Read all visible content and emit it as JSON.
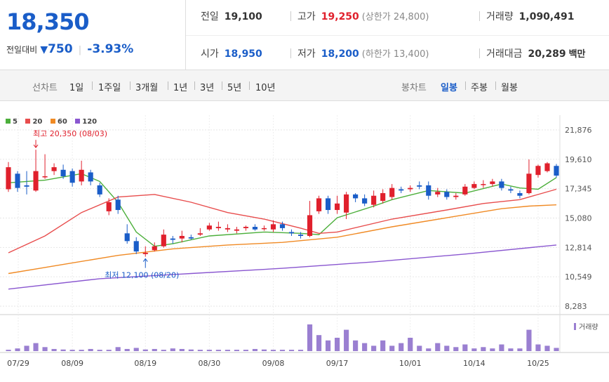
{
  "price": {
    "current": "18,350",
    "change_label": "전일대비",
    "change_arrow": "▼",
    "change_value": "750",
    "change_rate": "-3.93%",
    "color_down": "#1a5dc8",
    "color_up": "#e0202c"
  },
  "stats": {
    "prev_close": {
      "label": "전일",
      "value": "19,100"
    },
    "high": {
      "label": "고가",
      "value": "19,250",
      "sub": "(상한가 24,800)"
    },
    "volume": {
      "label": "거래량",
      "value": "1,090,491"
    },
    "open": {
      "label": "시가",
      "value": "18,950"
    },
    "low": {
      "label": "저가",
      "value": "18,200",
      "sub": "(하한가 13,400)"
    },
    "amount": {
      "label": "거래대금",
      "value": "20,289",
      "unit": "백만"
    }
  },
  "toolbar": {
    "line_chart_label": "선차트",
    "periods": [
      "1일",
      "1주일",
      "3개월",
      "1년",
      "3년",
      "5년",
      "10년"
    ],
    "candle_chart_label": "봉차트",
    "candle_periods": [
      "일봉",
      "주봉",
      "월봉"
    ],
    "candle_selected": "일봉"
  },
  "legend": [
    {
      "label": "5",
      "color": "#4caf3b"
    },
    {
      "label": "20",
      "color": "#e84d4d"
    },
    {
      "label": "60",
      "color": "#f08a24"
    },
    {
      "label": "120",
      "color": "#8a57d0"
    }
  ],
  "annotations": {
    "high": "최고 20,350 (08/03)",
    "low": "최저 12,100 (08/20)"
  },
  "volume_label": "거래량",
  "chart_data": {
    "type": "candlestick",
    "y_ticks": [
      21876,
      19610,
      17345,
      15080,
      12814,
      10549,
      8283
    ],
    "ylim": [
      8283,
      21876
    ],
    "x_tick_labels": [
      "07/29",
      "08/09",
      "08/19",
      "08/30",
      "09/08",
      "09/17",
      "10/01",
      "10/14",
      "10/25"
    ],
    "candles": [
      {
        "o": 17300,
        "c": 19000,
        "h": 19400,
        "l": 17100
      },
      {
        "o": 18500,
        "c": 17400,
        "h": 18700,
        "l": 17100
      },
      {
        "o": 17600,
        "c": 17500,
        "h": 18700,
        "l": 16900
      },
      {
        "o": 17200,
        "c": 18700,
        "h": 20350,
        "l": 17100
      },
      {
        "o": 18300,
        "c": 18300,
        "h": 20000,
        "l": 18100
      },
      {
        "o": 18700,
        "c": 19000,
        "h": 19300,
        "l": 18400
      },
      {
        "o": 18800,
        "c": 18300,
        "h": 19200,
        "l": 18100
      },
      {
        "o": 18700,
        "c": 17800,
        "h": 18900,
        "l": 17500
      },
      {
        "o": 17900,
        "c": 18800,
        "h": 19500,
        "l": 17600
      },
      {
        "o": 18600,
        "c": 17900,
        "h": 18800,
        "l": 17600
      },
      {
        "o": 17600,
        "c": 16900,
        "h": 17800,
        "l": 16700
      },
      {
        "o": 15600,
        "c": 16300,
        "h": 16600,
        "l": 15300
      },
      {
        "o": 16500,
        "c": 15700,
        "h": 16800,
        "l": 15400
      },
      {
        "o": 13900,
        "c": 13300,
        "h": 14600,
        "l": 13100
      },
      {
        "o": 13300,
        "c": 12500,
        "h": 13600,
        "l": 12300
      },
      {
        "o": 12300,
        "c": 12400,
        "h": 12900,
        "l": 12100
      },
      {
        "o": 12600,
        "c": 12900,
        "h": 13200,
        "l": 12500
      },
      {
        "o": 12900,
        "c": 13800,
        "h": 14200,
        "l": 12800
      },
      {
        "o": 13500,
        "c": 13400,
        "h": 13700,
        "l": 13100
      },
      {
        "o": 13500,
        "c": 13700,
        "h": 14100,
        "l": 13200
      },
      {
        "o": 13600,
        "c": 13500,
        "h": 13800,
        "l": 13400
      },
      {
        "o": 13800,
        "c": 13900,
        "h": 14300,
        "l": 13700
      },
      {
        "o": 14200,
        "c": 14500,
        "h": 14700,
        "l": 14100
      },
      {
        "o": 14300,
        "c": 14400,
        "h": 14800,
        "l": 14100
      },
      {
        "o": 14200,
        "c": 14300,
        "h": 14600,
        "l": 14000
      },
      {
        "o": 14100,
        "c": 14200,
        "h": 14400,
        "l": 13900
      },
      {
        "o": 14300,
        "c": 14400,
        "h": 14500,
        "l": 14100
      },
      {
        "o": 14400,
        "c": 14200,
        "h": 14600,
        "l": 14100
      },
      {
        "o": 14300,
        "c": 14300,
        "h": 14500,
        "l": 14100
      },
      {
        "o": 14200,
        "c": 14600,
        "h": 14900,
        "l": 14000
      },
      {
        "o": 14600,
        "c": 14300,
        "h": 14800,
        "l": 14100
      },
      {
        "o": 14000,
        "c": 13900,
        "h": 14200,
        "l": 13700
      },
      {
        "o": 13800,
        "c": 13700,
        "h": 14000,
        "l": 13500
      },
      {
        "o": 13700,
        "c": 15300,
        "h": 16400,
        "l": 13600
      },
      {
        "o": 15600,
        "c": 16600,
        "h": 16800,
        "l": 15400
      },
      {
        "o": 16600,
        "c": 15700,
        "h": 16800,
        "l": 15400
      },
      {
        "o": 15700,
        "c": 16200,
        "h": 16800,
        "l": 15400
      },
      {
        "o": 15500,
        "c": 16900,
        "h": 17100,
        "l": 15000
      },
      {
        "o": 16900,
        "c": 16600,
        "h": 17000,
        "l": 16300
      },
      {
        "o": 16600,
        "c": 16200,
        "h": 16900,
        "l": 16000
      },
      {
        "o": 16100,
        "c": 16800,
        "h": 17200,
        "l": 15900
      },
      {
        "o": 16400,
        "c": 17000,
        "h": 17300,
        "l": 16200
      },
      {
        "o": 16700,
        "c": 17400,
        "h": 17700,
        "l": 16500
      },
      {
        "o": 17300,
        "c": 17200,
        "h": 17500,
        "l": 17000
      },
      {
        "o": 17300,
        "c": 17400,
        "h": 17600,
        "l": 17100
      },
      {
        "o": 17600,
        "c": 17500,
        "h": 17900,
        "l": 17300
      },
      {
        "o": 17600,
        "c": 16800,
        "h": 17900,
        "l": 16500
      },
      {
        "o": 16900,
        "c": 17100,
        "h": 17400,
        "l": 16700
      },
      {
        "o": 17100,
        "c": 16700,
        "h": 17300,
        "l": 16500
      },
      {
        "o": 16700,
        "c": 16800,
        "h": 17000,
        "l": 16500
      },
      {
        "o": 16900,
        "c": 17500,
        "h": 17700,
        "l": 16800
      },
      {
        "o": 17400,
        "c": 17700,
        "h": 17900,
        "l": 17300
      },
      {
        "o": 17700,
        "c": 17700,
        "h": 18000,
        "l": 17400
      },
      {
        "o": 17700,
        "c": 17900,
        "h": 18100,
        "l": 17500
      },
      {
        "o": 17900,
        "c": 17400,
        "h": 18100,
        "l": 17200
      },
      {
        "o": 17300,
        "c": 17200,
        "h": 17500,
        "l": 17000
      },
      {
        "o": 17000,
        "c": 16800,
        "h": 17200,
        "l": 16600
      },
      {
        "o": 17000,
        "c": 18500,
        "h": 19600,
        "l": 16900
      },
      {
        "o": 18400,
        "c": 19100,
        "h": 19200,
        "l": 18200
      },
      {
        "o": 18700,
        "c": 19300,
        "h": 19400,
        "l": 18600
      },
      {
        "o": 19100,
        "c": 18350,
        "h": 19250,
        "l": 18200
      }
    ],
    "ma": {
      "5": [
        [
          0,
          17800
        ],
        [
          4,
          18000
        ],
        [
          8,
          18500
        ],
        [
          10,
          17900
        ],
        [
          12,
          16300
        ],
        [
          14,
          14000
        ],
        [
          16,
          12900
        ],
        [
          18,
          13100
        ],
        [
          22,
          13700
        ],
        [
          28,
          14000
        ],
        [
          32,
          13900
        ],
        [
          34,
          13800
        ],
        [
          36,
          15100
        ],
        [
          40,
          16000
        ],
        [
          42,
          16500
        ],
        [
          46,
          17200
        ],
        [
          50,
          17000
        ],
        [
          54,
          17700
        ],
        [
          56,
          17400
        ],
        [
          58,
          17300
        ],
        [
          60,
          18200
        ]
      ],
      "20": [
        [
          0,
          12400
        ],
        [
          4,
          13700
        ],
        [
          8,
          15500
        ],
        [
          12,
          16700
        ],
        [
          16,
          16900
        ],
        [
          20,
          16300
        ],
        [
          24,
          15500
        ],
        [
          28,
          15000
        ],
        [
          32,
          14300
        ],
        [
          34,
          13900
        ],
        [
          36,
          14000
        ],
        [
          42,
          15000
        ],
        [
          48,
          15700
        ],
        [
          52,
          16200
        ],
        [
          56,
          16500
        ],
        [
          60,
          17300
        ]
      ],
      "60": [
        [
          0,
          10800
        ],
        [
          6,
          11500
        ],
        [
          12,
          12200
        ],
        [
          18,
          12700
        ],
        [
          24,
          13000
        ],
        [
          30,
          13200
        ],
        [
          36,
          13600
        ],
        [
          42,
          14400
        ],
        [
          48,
          15100
        ],
        [
          54,
          15800
        ],
        [
          57,
          16000
        ],
        [
          60,
          16100
        ]
      ],
      "120": [
        [
          0,
          9600
        ],
        [
          10,
          10400
        ],
        [
          20,
          10800
        ],
        [
          30,
          11200
        ],
        [
          40,
          11700
        ],
        [
          50,
          12300
        ],
        [
          60,
          13000
        ]
      ]
    },
    "volume_rel": [
      0.05,
      0.1,
      0.2,
      0.3,
      0.15,
      0.08,
      0.06,
      0.05,
      0.05,
      0.08,
      0.05,
      0.05,
      0.15,
      0.08,
      0.12,
      0.06,
      0.08,
      0.05,
      0.1,
      0.08,
      0.06,
      0.05,
      0.05,
      0.05,
      0.05,
      0.05,
      0.05,
      0.08,
      0.06,
      0.05,
      0.05,
      0.05,
      0.05,
      1.0,
      0.6,
      0.4,
      0.5,
      0.8,
      0.4,
      0.3,
      0.2,
      0.4,
      0.2,
      0.3,
      0.5,
      0.2,
      0.1,
      0.3,
      0.2,
      0.15,
      0.25,
      0.1,
      0.15,
      0.1,
      0.25,
      0.1,
      0.1,
      0.8,
      0.25,
      0.2,
      0.12
    ]
  }
}
